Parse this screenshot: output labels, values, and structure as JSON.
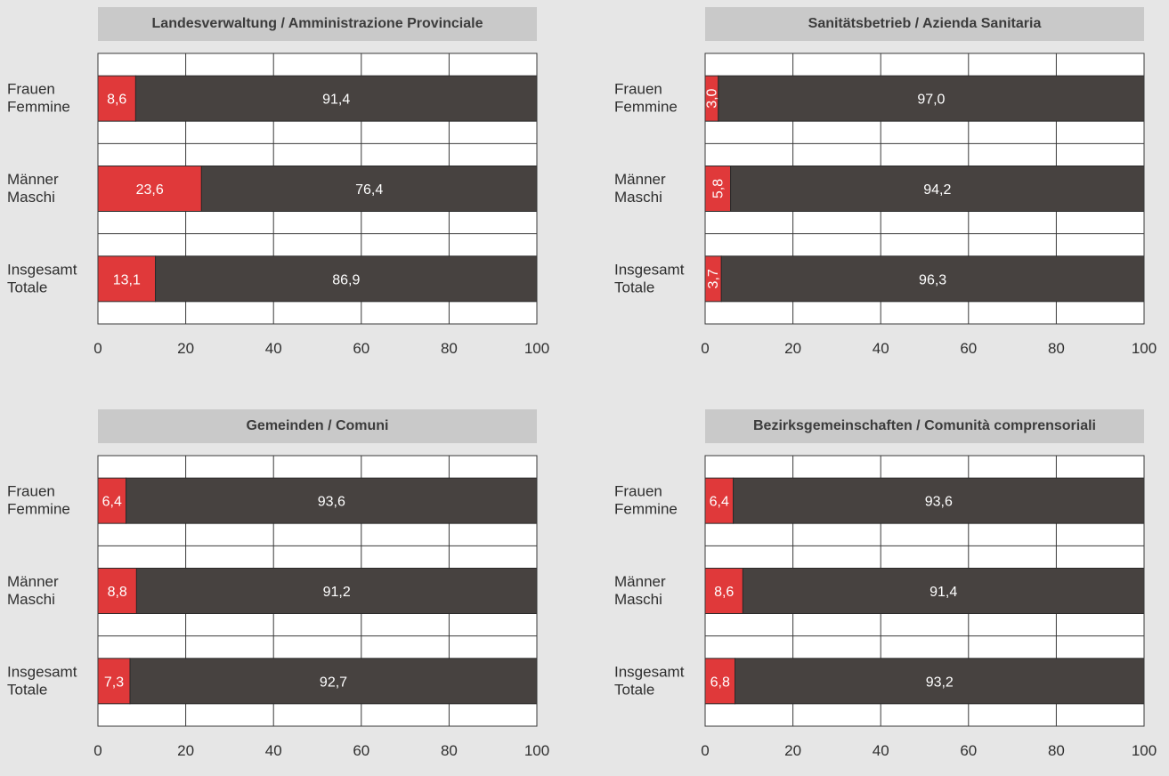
{
  "colors": {
    "share_a": "#e0393a",
    "share_b": "#474240",
    "title_bg": "#c9c9c9"
  },
  "chart_data": [
    {
      "type": "bar",
      "orientation": "horizontal",
      "stacked": true,
      "title": "Landesverwaltung / Amministrazione Provinciale",
      "categories": [
        [
          "Frauen",
          "Femmine"
        ],
        [
          "Männer",
          "Maschi"
        ],
        [
          "Insgesamt",
          "Totale"
        ]
      ],
      "series": [
        {
          "values": [
            8.6,
            23.6,
            13.1
          ],
          "labels": [
            "8,6",
            "23,6",
            "13,1"
          ],
          "color": "#e0393a"
        },
        {
          "values": [
            91.4,
            76.4,
            86.9
          ],
          "labels": [
            "91,4",
            "76,4",
            "86,9"
          ],
          "color": "#474240"
        }
      ],
      "xlim": [
        0,
        100
      ],
      "xticks": [
        "0",
        "20",
        "40",
        "60",
        "80",
        "100"
      ],
      "grid": true
    },
    {
      "type": "bar",
      "orientation": "horizontal",
      "stacked": true,
      "title": "Sanitätsbetrieb / Azienda Sanitaria",
      "categories": [
        [
          "Frauen",
          "Femmine"
        ],
        [
          "Männer",
          "Maschi"
        ],
        [
          "Insgesamt",
          "Totale"
        ]
      ],
      "series": [
        {
          "values": [
            3.0,
            5.8,
            3.7
          ],
          "labels": [
            "3,0",
            "5,8",
            "3,7"
          ],
          "color": "#e0393a",
          "label_rotated": true
        },
        {
          "values": [
            97.0,
            94.2,
            96.3
          ],
          "labels": [
            "97,0",
            "94,2",
            "96,3"
          ],
          "color": "#474240"
        }
      ],
      "xlim": [
        0,
        100
      ],
      "xticks": [
        "0",
        "20",
        "40",
        "60",
        "80",
        "100"
      ],
      "grid": true
    },
    {
      "type": "bar",
      "orientation": "horizontal",
      "stacked": true,
      "title": "Gemeinden / Comuni",
      "categories": [
        [
          "Frauen",
          "Femmine"
        ],
        [
          "Männer",
          "Maschi"
        ],
        [
          "Insgesamt",
          "Totale"
        ]
      ],
      "series": [
        {
          "values": [
            6.4,
            8.8,
            7.3
          ],
          "labels": [
            "6,4",
            "8,8",
            "7,3"
          ],
          "color": "#e0393a"
        },
        {
          "values": [
            93.6,
            91.2,
            92.7
          ],
          "labels": [
            "93,6",
            "91,2",
            "92,7"
          ],
          "color": "#474240"
        }
      ],
      "xlim": [
        0,
        100
      ],
      "xticks": [
        "0",
        "20",
        "40",
        "60",
        "80",
        "100"
      ],
      "grid": true
    },
    {
      "type": "bar",
      "orientation": "horizontal",
      "stacked": true,
      "title": "Bezirksgemeinschaften / Comunità comprensoriali",
      "categories": [
        [
          "Frauen",
          "Femmine"
        ],
        [
          "Männer",
          "Maschi"
        ],
        [
          "Insgesamt",
          "Totale"
        ]
      ],
      "series": [
        {
          "values": [
            6.4,
            8.6,
            6.8
          ],
          "labels": [
            "6,4",
            "8,6",
            "6,8"
          ],
          "color": "#e0393a"
        },
        {
          "values": [
            93.6,
            91.4,
            93.2
          ],
          "labels": [
            "93,6",
            "91,4",
            "93,2"
          ],
          "color": "#474240"
        }
      ],
      "xlim": [
        0,
        100
      ],
      "xticks": [
        "0",
        "20",
        "40",
        "60",
        "80",
        "100"
      ],
      "grid": true
    }
  ]
}
